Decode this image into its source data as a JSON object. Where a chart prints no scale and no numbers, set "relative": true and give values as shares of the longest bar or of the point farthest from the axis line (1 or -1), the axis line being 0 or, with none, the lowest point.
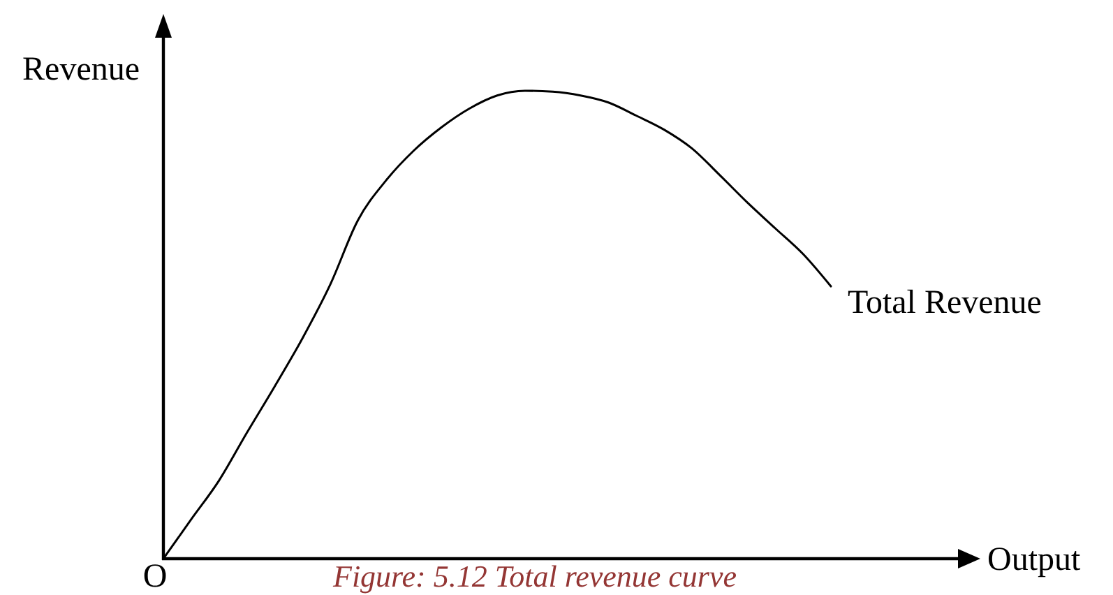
{
  "chart_data": {
    "type": "line",
    "relative": true,
    "xlabel": "Output",
    "ylabel": "Revenue",
    "annotations": [
      "Figure: 5.12 Total revenue curve",
      "O"
    ],
    "categories": [
      null,
      null,
      null,
      null,
      null,
      null,
      null,
      null,
      null,
      null,
      null,
      null,
      null,
      null,
      null,
      null,
      null,
      null,
      null,
      null,
      null,
      null,
      null,
      null,
      null
    ],
    "series": [
      {
        "name": "Total Revenue",
        "color": "#000000",
        "values": [
          0,
          0.084,
          0.167,
          0.269,
          0.368,
          0.471,
          0.586,
          0.724,
          0.808,
          0.872,
          0.922,
          0.962,
          0.99,
          1,
          0.998,
          0.99,
          0.975,
          0.947,
          0.917,
          0.877,
          0.82,
          0.761,
          0.706,
          0.651,
          0.582
        ]
      }
    ]
  }
}
